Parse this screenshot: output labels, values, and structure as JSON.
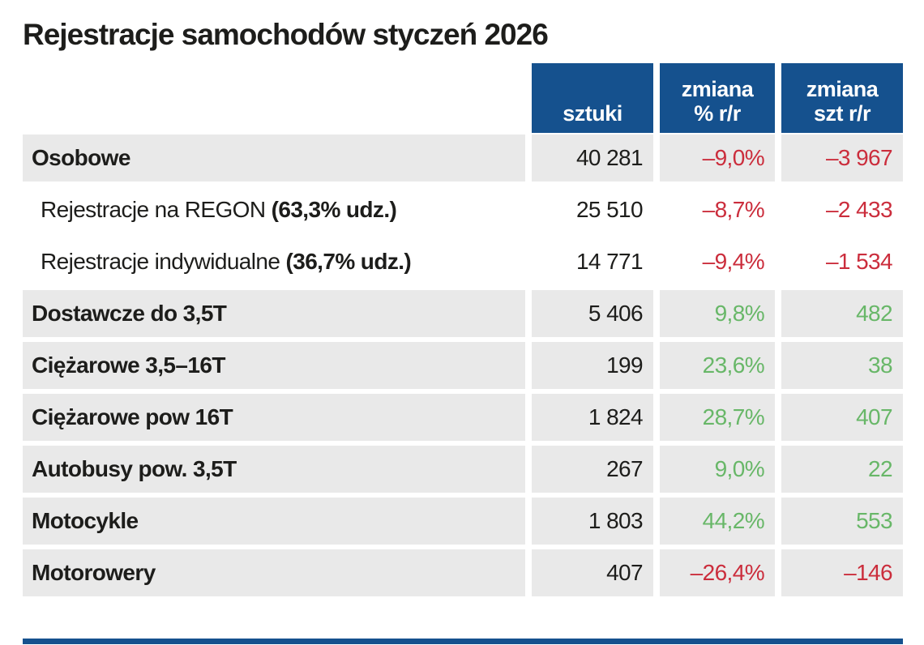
{
  "title": "Rejestracje samochodów styczeń 2026",
  "colors": {
    "header_blue": "#15518e",
    "negative_red": "#cb2d3c",
    "positive_green": "#68b768",
    "row_gray": "#e9e9e9",
    "text_dark": "#1d1d1b"
  },
  "table": {
    "columns": [
      {
        "lines": [
          "sztuki"
        ]
      },
      {
        "lines": [
          "zmiana",
          "% r/r"
        ]
      },
      {
        "lines": [
          "zmiana",
          "szt r/r"
        ]
      }
    ],
    "rows": [
      {
        "type": "category",
        "label": "Osobowe",
        "label_bold": "",
        "sztuki": "40 281",
        "zmiana_pct": "–9,0%",
        "zmiana_szt": "–3 967",
        "trend": "down"
      },
      {
        "type": "sub",
        "label": "Rejestracje na REGON ",
        "label_bold": "(63,3% udz.)",
        "sztuki": "25 510",
        "zmiana_pct": "–8,7%",
        "zmiana_szt": "–2 433",
        "trend": "down"
      },
      {
        "type": "sub",
        "label": "Rejestracje indywidualne ",
        "label_bold": "(36,7% udz.)",
        "sztuki": "14 771",
        "zmiana_pct": "–9,4%",
        "zmiana_szt": "–1 534",
        "trend": "down"
      },
      {
        "type": "category",
        "label": "Dostawcze do 3,5T",
        "label_bold": "",
        "sztuki": "5 406",
        "zmiana_pct": "9,8%",
        "zmiana_szt": "482",
        "trend": "up"
      },
      {
        "type": "category",
        "label": "Ciężarowe 3,5–16T",
        "label_bold": "",
        "sztuki": "199",
        "zmiana_pct": "23,6%",
        "zmiana_szt": "38",
        "trend": "up"
      },
      {
        "type": "category",
        "label": "Ciężarowe pow 16T",
        "label_bold": "",
        "sztuki": "1 824",
        "zmiana_pct": "28,7%",
        "zmiana_szt": "407",
        "trend": "up"
      },
      {
        "type": "category",
        "label": "Autobusy pow. 3,5T",
        "label_bold": "",
        "sztuki": "267",
        "zmiana_pct": "9,0%",
        "zmiana_szt": "22",
        "trend": "up"
      },
      {
        "type": "category",
        "label": "Motocykle",
        "label_bold": "",
        "sztuki": "1 803",
        "zmiana_pct": "44,2%",
        "zmiana_szt": "553",
        "trend": "up"
      },
      {
        "type": "category",
        "label": "Motorowery",
        "label_bold": "",
        "sztuki": "407",
        "zmiana_pct": "–26,4%",
        "zmiana_szt": "–146",
        "trend": "down"
      }
    ]
  },
  "chart_data": {
    "type": "table",
    "title": "Rejestracje samochodów styczeń 2026",
    "columns": [
      "sztuki",
      "zmiana % r/r",
      "zmiana szt r/r"
    ],
    "rows": [
      {
        "category": "Osobowe",
        "sztuki": 40281,
        "zmiana_proc_rr": -9.0,
        "zmiana_szt_rr": -3967
      },
      {
        "category": "Rejestracje na REGON (63,3% udz.)",
        "sztuki": 25510,
        "zmiana_proc_rr": -8.7,
        "zmiana_szt_rr": -2433
      },
      {
        "category": "Rejestracje indywidualne (36,7% udz.)",
        "sztuki": 14771,
        "zmiana_proc_rr": -9.4,
        "zmiana_szt_rr": -1534
      },
      {
        "category": "Dostawcze do 3,5T",
        "sztuki": 5406,
        "zmiana_proc_rr": 9.8,
        "zmiana_szt_rr": 482
      },
      {
        "category": "Ciężarowe 3,5–16T",
        "sztuki": 199,
        "zmiana_proc_rr": 23.6,
        "zmiana_szt_rr": 38
      },
      {
        "category": "Ciężarowe pow 16T",
        "sztuki": 1824,
        "zmiana_proc_rr": 28.7,
        "zmiana_szt_rr": 407
      },
      {
        "category": "Autobusy pow. 3,5T",
        "sztuki": 267,
        "zmiana_proc_rr": 9.0,
        "zmiana_szt_rr": 22
      },
      {
        "category": "Motocykle",
        "sztuki": 1803,
        "zmiana_proc_rr": 44.2,
        "zmiana_szt_rr": 553
      },
      {
        "category": "Motorowery",
        "sztuki": 407,
        "zmiana_proc_rr": -26.4,
        "zmiana_szt_rr": -146
      }
    ]
  }
}
